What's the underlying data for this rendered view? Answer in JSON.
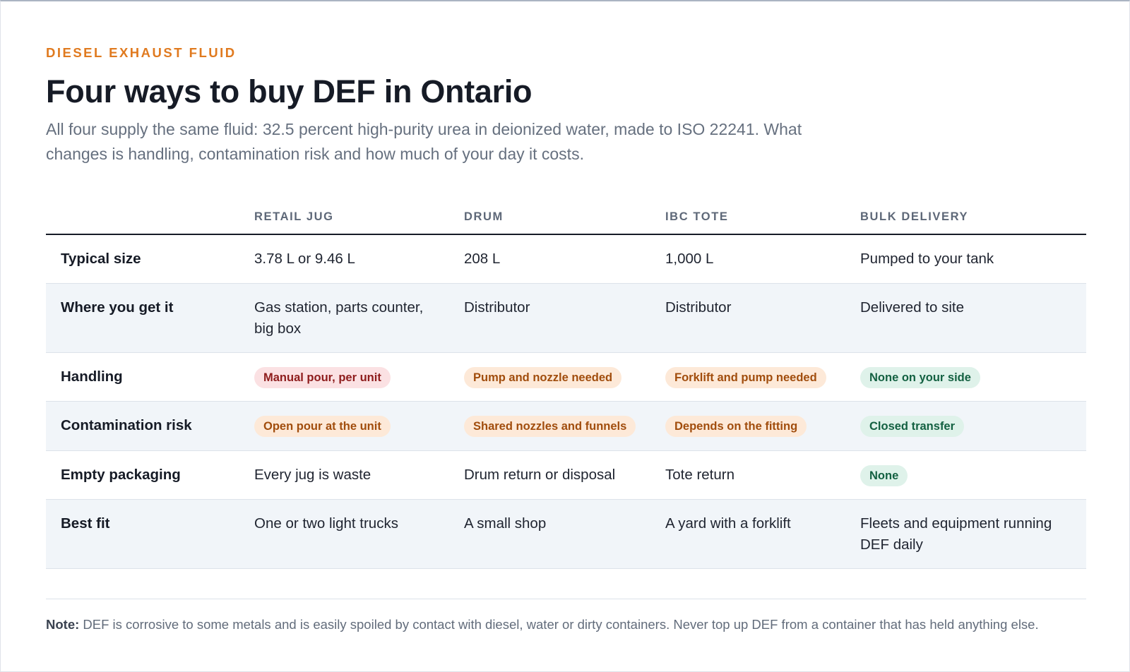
{
  "eyebrow": "DIESEL EXHAUST FLUID",
  "title": "Four ways to buy DEF in Ontario",
  "subtitle": "All four supply the same fluid: 32.5 percent high-purity urea in deionized water, made to ISO 22241. What changes is handling, contamination risk and how much of your day it costs.",
  "columns": [
    "RETAIL JUG",
    "DRUM",
    "IBC TOTE",
    "BULK DELIVERY"
  ],
  "rows": [
    {
      "label": "Typical size",
      "cells": [
        "3.78 L or 9.46 L",
        "208 L",
        "1,000 L",
        "Pumped to your tank"
      ]
    },
    {
      "label": "Where you get it",
      "cells": [
        "Gas station, parts counter, big box",
        "Distributor",
        "Distributor",
        "Delivered to site"
      ]
    },
    {
      "label": "Handling",
      "cells": [
        "Manual pour, per unit",
        "Pump and nozzle needed",
        "Forklift and pump needed",
        "None on your side"
      ]
    },
    {
      "label": "Contamination risk",
      "cells": [
        "Open pour at the unit",
        "Shared nozzles and funnels",
        "Depends on the fitting",
        "Closed transfer"
      ]
    },
    {
      "label": "Empty packaging",
      "cells": [
        "Every jug is waste",
        "Drum return or disposal",
        "Tote return",
        "None"
      ]
    },
    {
      "label": "Best fit",
      "cells": [
        "One or two light trucks",
        "A small shop",
        "A yard with a forklift",
        "Fleets and equipment running DEF daily"
      ]
    }
  ],
  "badge_colors": {
    "red": "#fbe1e3",
    "orange": "#fde9d8",
    "green": "#dff2ea"
  },
  "note": {
    "label": "Note:",
    "text": " DEF is corrosive to some metals and is easily spoiled by contact with diesel, water or dirty containers. Never top up DEF from a container that has held anything else."
  }
}
